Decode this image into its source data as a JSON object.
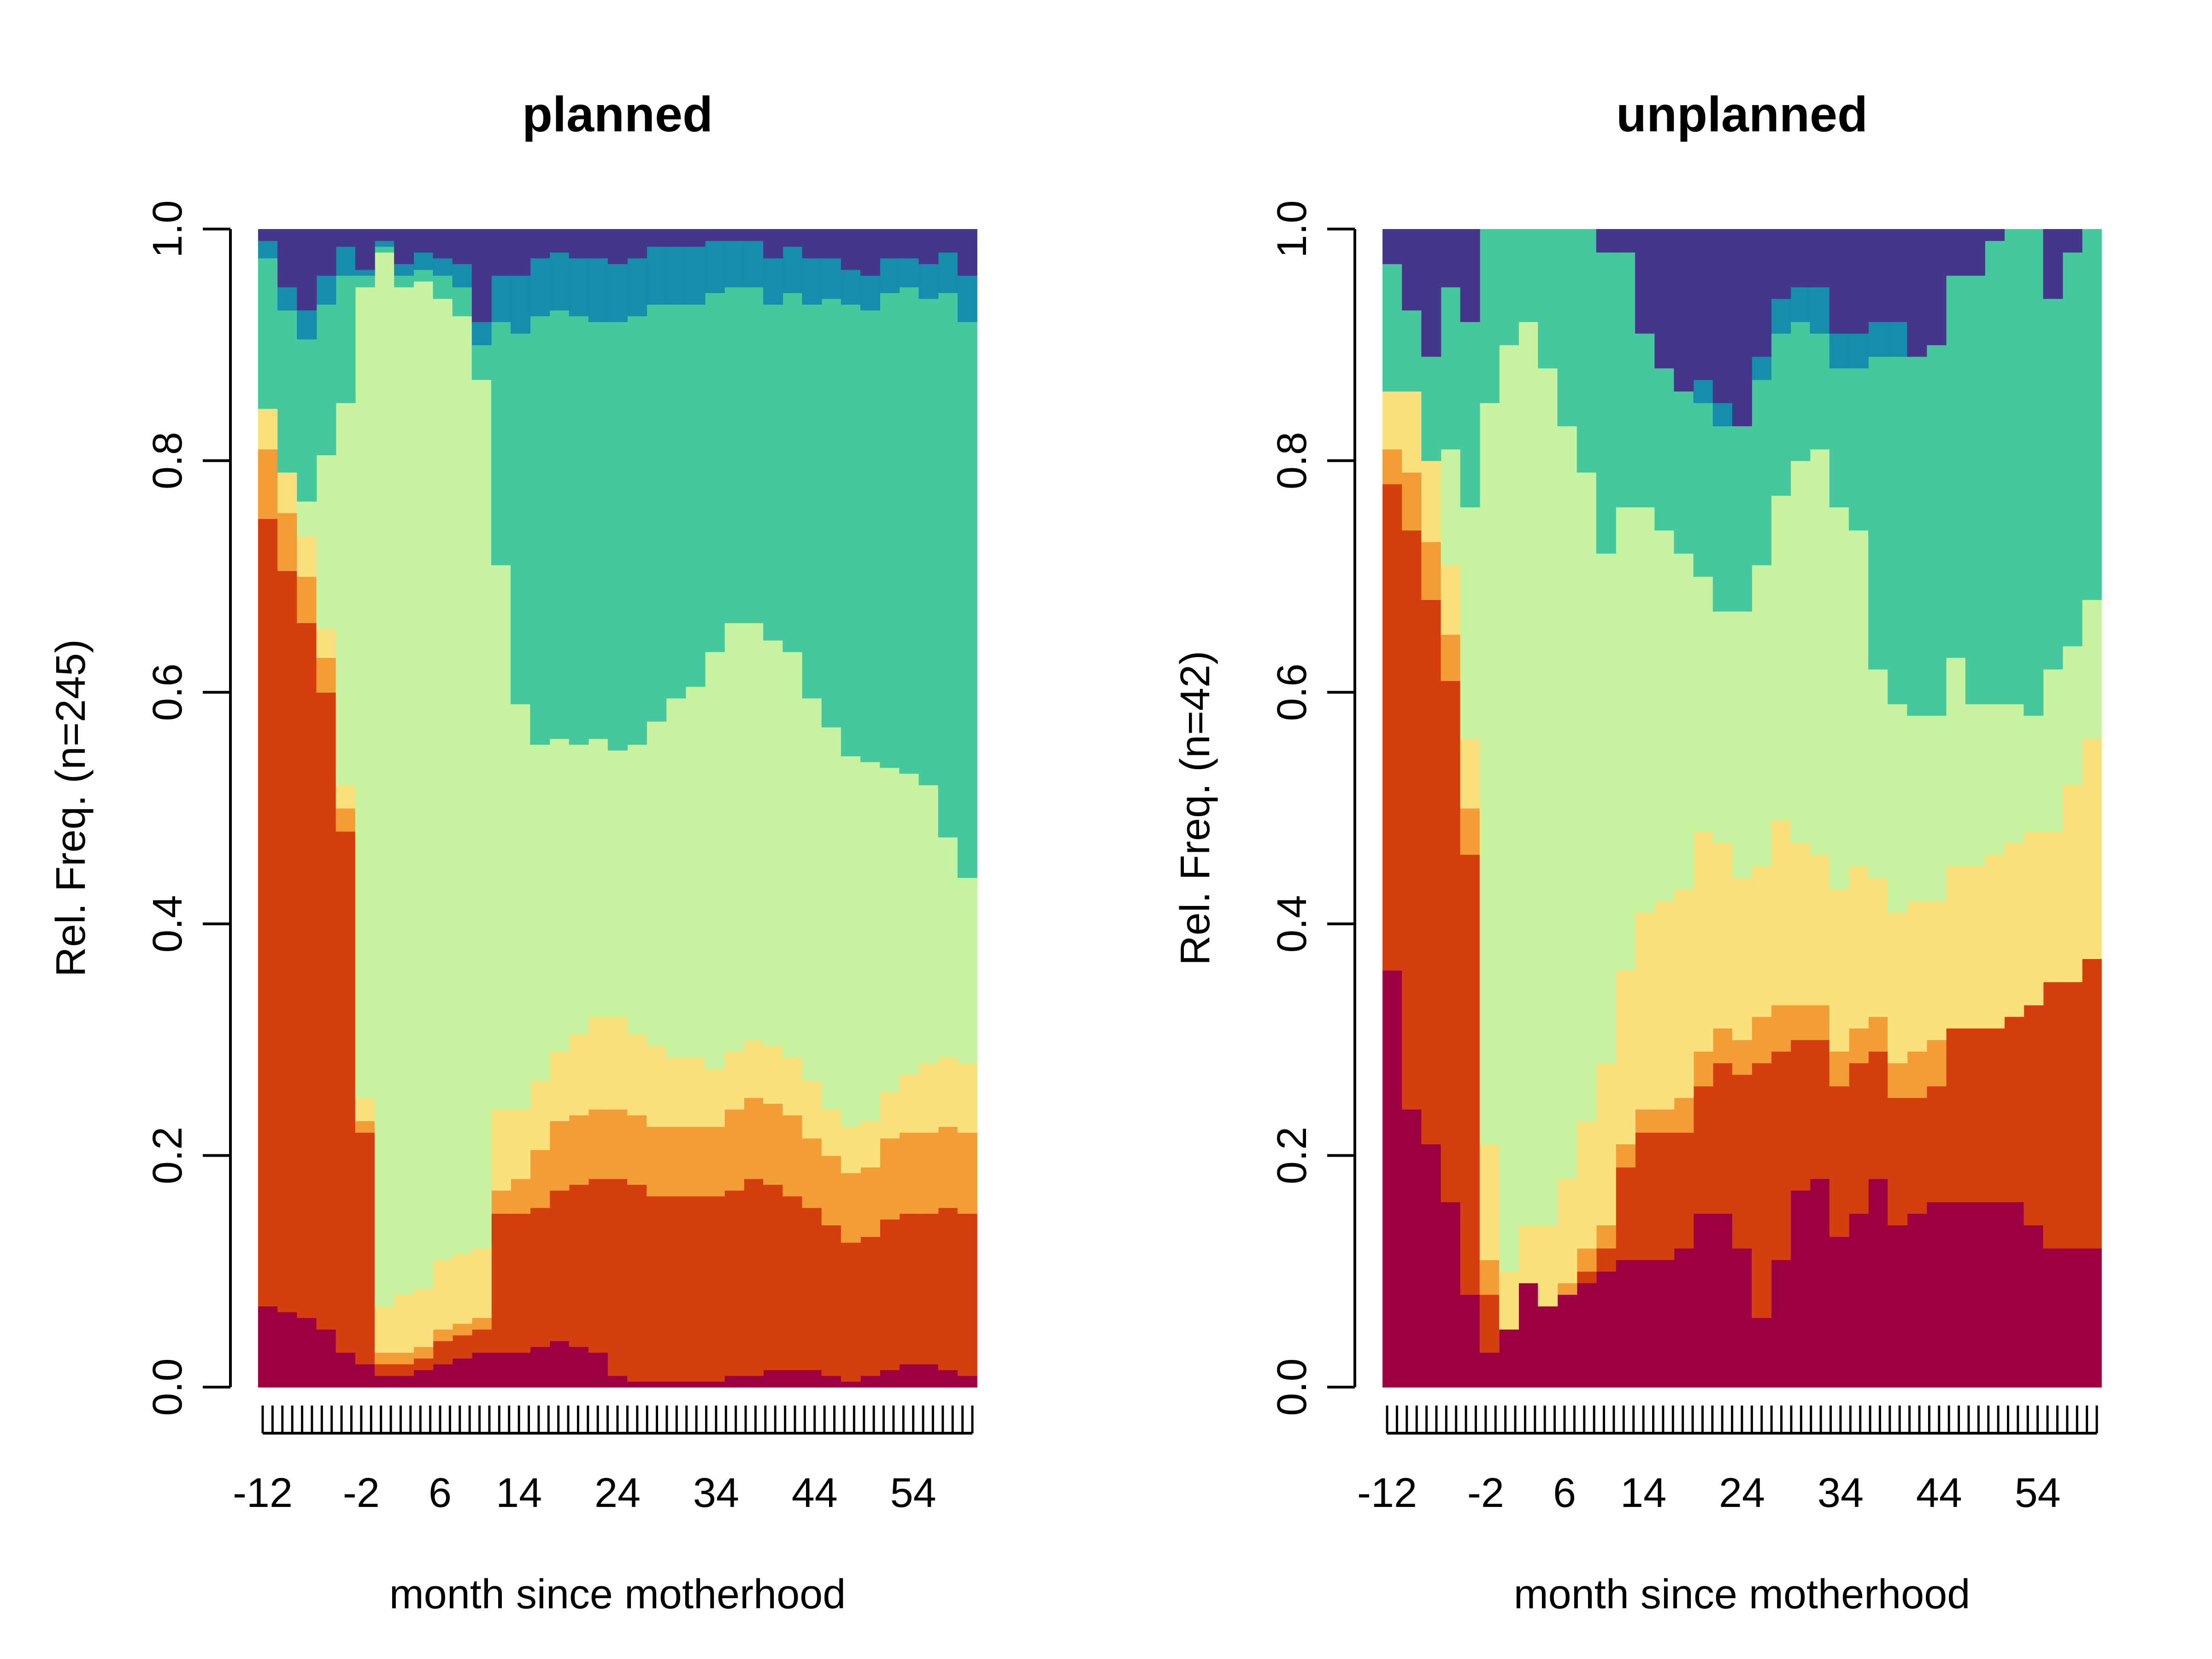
{
  "chart_data": [
    {
      "type": "area",
      "stacked": true,
      "title": "planned",
      "xlabel": "month since motherhood",
      "ylabel": "Rel. Freq. (n=245)",
      "ylim": [
        0,
        1
      ],
      "xlim": [
        -12,
        60
      ],
      "x_tick_labels": [
        "-12",
        "-2",
        "6",
        "14",
        "24",
        "34",
        "44",
        "54"
      ],
      "y_tick_labels": [
        "0.0",
        "0.2",
        "0.4",
        "0.6",
        "0.8",
        "1.0"
      ],
      "x": [
        -12,
        -10,
        -8,
        -6,
        -4,
        -2,
        0,
        2,
        4,
        6,
        8,
        10,
        12,
        14,
        16,
        18,
        20,
        22,
        24,
        26,
        28,
        30,
        32,
        34,
        36,
        38,
        40,
        42,
        44,
        46,
        48,
        50,
        52,
        54,
        56,
        58,
        60
      ],
      "series": [
        {
          "color": "#9E0142",
          "values": [
            0.07,
            0.065,
            0.06,
            0.05,
            0.03,
            0.02,
            0.01,
            0.01,
            0.015,
            0.02,
            0.025,
            0.03,
            0.03,
            0.03,
            0.035,
            0.04,
            0.035,
            0.03,
            0.01,
            0.005,
            0.005,
            0.005,
            0.005,
            0.005,
            0.01,
            0.01,
            0.015,
            0.015,
            0.015,
            0.01,
            0.005,
            0.01,
            0.015,
            0.02,
            0.02,
            0.015,
            0.01
          ]
        },
        {
          "color": "#D53E0F",
          "values": [
            0.68,
            0.64,
            0.6,
            0.55,
            0.45,
            0.2,
            0.01,
            0.01,
            0.01,
            0.02,
            0.02,
            0.02,
            0.12,
            0.12,
            0.12,
            0.13,
            0.14,
            0.15,
            0.17,
            0.17,
            0.16,
            0.16,
            0.16,
            0.16,
            0.16,
            0.17,
            0.16,
            0.15,
            0.14,
            0.13,
            0.12,
            0.12,
            0.13,
            0.13,
            0.13,
            0.14,
            0.14
          ]
        },
        {
          "color": "#F29D36",
          "values": [
            0.06,
            0.05,
            0.04,
            0.03,
            0.02,
            0.01,
            0.01,
            0.01,
            0.01,
            0.01,
            0.01,
            0.01,
            0.02,
            0.03,
            0.05,
            0.06,
            0.06,
            0.06,
            0.06,
            0.06,
            0.06,
            0.06,
            0.06,
            0.06,
            0.07,
            0.07,
            0.07,
            0.07,
            0.06,
            0.06,
            0.06,
            0.06,
            0.07,
            0.07,
            0.07,
            0.07,
            0.07
          ]
        },
        {
          "color": "#FBE07E",
          "values": [
            0.035,
            0.035,
            0.035,
            0.025,
            0.02,
            0.02,
            0.04,
            0.05,
            0.05,
            0.06,
            0.06,
            0.06,
            0.07,
            0.06,
            0.06,
            0.06,
            0.07,
            0.08,
            0.08,
            0.07,
            0.07,
            0.06,
            0.06,
            0.05,
            0.05,
            0.05,
            0.05,
            0.05,
            0.05,
            0.04,
            0.04,
            0.04,
            0.04,
            0.05,
            0.06,
            0.06,
            0.06
          ]
        },
        {
          "color": "#C7F29F",
          "values": [
            0.0,
            0.0,
            0.03,
            0.15,
            0.33,
            0.7,
            0.91,
            0.87,
            0.87,
            0.83,
            0.81,
            0.75,
            0.47,
            0.35,
            0.29,
            0.27,
            0.25,
            0.24,
            0.23,
            0.25,
            0.28,
            0.31,
            0.32,
            0.36,
            0.37,
            0.36,
            0.35,
            0.35,
            0.33,
            0.33,
            0.32,
            0.31,
            0.28,
            0.26,
            0.24,
            0.19,
            0.16
          ]
        },
        {
          "color": "#47C79E",
          "values": [
            0.13,
            0.14,
            0.14,
            0.13,
            0.11,
            0.01,
            0.005,
            0.01,
            0.01,
            0.02,
            0.025,
            0.03,
            0.21,
            0.32,
            0.37,
            0.37,
            0.37,
            0.36,
            0.37,
            0.37,
            0.36,
            0.34,
            0.33,
            0.31,
            0.29,
            0.29,
            0.29,
            0.31,
            0.34,
            0.37,
            0.39,
            0.39,
            0.41,
            0.42,
            0.42,
            0.47,
            0.48
          ]
        },
        {
          "color": "#158DAB",
          "values": [
            0.015,
            0.02,
            0.025,
            0.025,
            0.025,
            0.005,
            0.005,
            0.01,
            0.015,
            0.015,
            0.02,
            0.02,
            0.04,
            0.05,
            0.05,
            0.05,
            0.05,
            0.055,
            0.05,
            0.05,
            0.05,
            0.05,
            0.05,
            0.045,
            0.04,
            0.04,
            0.04,
            0.04,
            0.04,
            0.035,
            0.03,
            0.03,
            0.03,
            0.025,
            0.03,
            0.035,
            0.04
          ]
        },
        {
          "color": "#45368C",
          "values": [
            0.02,
            0.03,
            0.04,
            0.04,
            0.04,
            0.03,
            0.005,
            0.005,
            0.005,
            0.005,
            0.005,
            0.005,
            0.02,
            0.03,
            0.025,
            0.02,
            0.02,
            0.02,
            0.02,
            0.025,
            0.025,
            0.025,
            0.025,
            0.025,
            0.025,
            0.02,
            0.02,
            0.02,
            0.025,
            0.03,
            0.03,
            0.03,
            0.025,
            0.025,
            0.025,
            0.025,
            0.04
          ]
        }
      ]
    },
    {
      "type": "area",
      "stacked": true,
      "title": "unplanned",
      "xlabel": "month since motherhood",
      "ylabel": "Rel. Freq. (n=42)",
      "ylim": [
        0,
        1
      ],
      "xlim": [
        -12,
        60
      ],
      "x_tick_labels": [
        "-12",
        "-2",
        "6",
        "14",
        "24",
        "34",
        "44",
        "54"
      ],
      "y_tick_labels": [
        "0.0",
        "0.2",
        "0.4",
        "0.6",
        "0.8",
        "1.0"
      ],
      "x": [
        -12,
        -10,
        -8,
        -6,
        -4,
        -2,
        0,
        2,
        4,
        6,
        8,
        10,
        12,
        14,
        16,
        18,
        20,
        22,
        24,
        26,
        28,
        30,
        32,
        34,
        36,
        38,
        40,
        42,
        44,
        46,
        48,
        50,
        52,
        54,
        56,
        58,
        60
      ],
      "series": [
        {
          "color": "#9E0142",
          "values": [
            0.36,
            0.24,
            0.21,
            0.16,
            0.08,
            0.03,
            0.05,
            0.09,
            0.07,
            0.08,
            0.09,
            0.1,
            0.11,
            0.11,
            0.11,
            0.12,
            0.15,
            0.15,
            0.12,
            0.06,
            0.11,
            0.17,
            0.18,
            0.13,
            0.15,
            0.18,
            0.14,
            0.15,
            0.16,
            0.16,
            0.16,
            0.16,
            0.16,
            0.14,
            0.12,
            0.12,
            0.12
          ]
        },
        {
          "color": "#D53E0F",
          "values": [
            0.42,
            0.5,
            0.47,
            0.45,
            0.38,
            0.05,
            0.0,
            0.0,
            0.0,
            0.0,
            0.01,
            0.02,
            0.08,
            0.11,
            0.11,
            0.1,
            0.11,
            0.13,
            0.15,
            0.22,
            0.18,
            0.13,
            0.12,
            0.13,
            0.13,
            0.11,
            0.11,
            0.1,
            0.1,
            0.15,
            0.15,
            0.15,
            0.16,
            0.19,
            0.23,
            0.23,
            0.25
          ]
        },
        {
          "color": "#F29D36",
          "values": [
            0.03,
            0.05,
            0.05,
            0.04,
            0.04,
            0.03,
            0.0,
            0.0,
            0.0,
            0.01,
            0.02,
            0.02,
            0.02,
            0.02,
            0.02,
            0.03,
            0.03,
            0.03,
            0.03,
            0.04,
            0.04,
            0.03,
            0.03,
            0.03,
            0.03,
            0.03,
            0.03,
            0.04,
            0.04,
            0.0,
            0.0,
            0.0,
            0.0,
            0.0,
            0.0,
            0.0,
            0.0
          ]
        },
        {
          "color": "#FBE07E",
          "values": [
            0.05,
            0.07,
            0.07,
            0.06,
            0.06,
            0.1,
            0.05,
            0.05,
            0.07,
            0.09,
            0.11,
            0.14,
            0.15,
            0.17,
            0.18,
            0.18,
            0.19,
            0.16,
            0.14,
            0.13,
            0.16,
            0.14,
            0.13,
            0.14,
            0.14,
            0.12,
            0.13,
            0.13,
            0.12,
            0.14,
            0.14,
            0.15,
            0.15,
            0.15,
            0.13,
            0.17,
            0.19
          ]
        },
        {
          "color": "#C7F29F",
          "values": [
            0.0,
            0.0,
            0.0,
            0.1,
            0.2,
            0.64,
            0.8,
            0.78,
            0.74,
            0.65,
            0.56,
            0.44,
            0.4,
            0.35,
            0.32,
            0.29,
            0.22,
            0.2,
            0.23,
            0.26,
            0.28,
            0.33,
            0.35,
            0.33,
            0.29,
            0.18,
            0.18,
            0.16,
            0.16,
            0.18,
            0.14,
            0.13,
            0.12,
            0.1,
            0.14,
            0.12,
            0.12
          ]
        },
        {
          "color": "#47C79E",
          "values": [
            0.11,
            0.07,
            0.09,
            0.14,
            0.16,
            0.15,
            0.1,
            0.08,
            0.12,
            0.17,
            0.21,
            0.26,
            0.22,
            0.15,
            0.14,
            0.14,
            0.15,
            0.16,
            0.16,
            0.16,
            0.14,
            0.12,
            0.1,
            0.12,
            0.14,
            0.27,
            0.3,
            0.31,
            0.32,
            0.33,
            0.37,
            0.4,
            0.41,
            0.42,
            0.32,
            0.34,
            0.32
          ]
        },
        {
          "color": "#158DAB",
          "values": [
            0.0,
            0.0,
            0.0,
            0.0,
            0.0,
            0.0,
            0.0,
            0.0,
            0.0,
            0.0,
            0.0,
            0.0,
            0.0,
            0.0,
            0.0,
            0.0,
            0.02,
            0.02,
            0.0,
            0.02,
            0.03,
            0.03,
            0.04,
            0.03,
            0.03,
            0.03,
            0.03,
            0.0,
            0.0,
            0.0,
            0.0,
            0.0,
            0.0,
            0.0,
            0.0,
            0.0,
            0.0
          ]
        },
        {
          "color": "#45368C",
          "values": [
            0.07,
            0.07,
            0.11,
            0.05,
            0.08,
            0.0,
            0.0,
            0.0,
            0.0,
            0.0,
            0.0,
            0.02,
            0.02,
            0.1,
            0.12,
            0.14,
            0.13,
            0.15,
            0.17,
            0.13,
            0.08,
            0.05,
            0.05,
            0.07,
            0.09,
            0.07,
            0.08,
            0.11,
            0.1,
            0.04,
            0.04,
            0.06,
            0.06,
            0.05,
            0.06,
            0.02,
            0.0
          ]
        }
      ]
    }
  ]
}
